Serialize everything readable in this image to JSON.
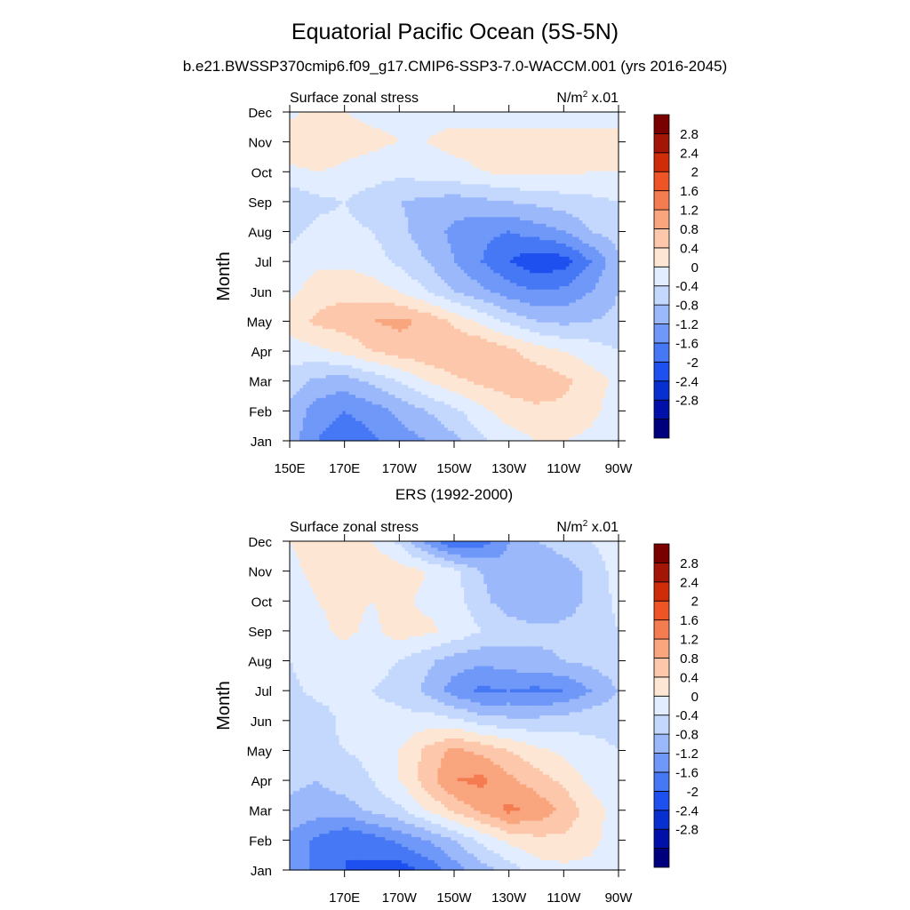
{
  "title": "Equatorial Pacific Ocean (5S-5N)",
  "subtitle": "b.e21.BWSSP370cmip6.f09_g17.CMIP6-SSP3-7.0-WACCM.001 (yrs 2016-2045)",
  "colors": {
    "levels": [
      "#00007f",
      "#0010a8",
      "#0830d0",
      "#1e50f0",
      "#4678f5",
      "#6f98f8",
      "#9bb8fb",
      "#c4d7fd",
      "#e2eeff",
      "#fde7d4",
      "#fcc7aa",
      "#f9a57e",
      "#f57b51",
      "#ee5426",
      "#cf2c0a",
      "#a31507",
      "#7a0000"
    ]
  },
  "chart_data": [
    {
      "type": "heatmap",
      "title": "",
      "left_label": "Surface zonal stress",
      "right_label": "N/m",
      "right_label_sup": "2",
      "right_label_tail": " x.01",
      "ylabel": "Month",
      "months": [
        "Jan",
        "Feb",
        "Mar",
        "Apr",
        "May",
        "Jun",
        "Jul",
        "Aug",
        "Sep",
        "Oct",
        "Nov",
        "Dec"
      ],
      "xlim": [
        150,
        270
      ],
      "x_ticks": [
        "150E",
        "170E",
        "170W",
        "150W",
        "130W",
        "110W",
        "90W"
      ],
      "x_tick_values": [
        150,
        170,
        190,
        210,
        230,
        250,
        270
      ],
      "colorbar_labels": [
        "2.8",
        "2.4",
        "2",
        "1.6",
        "1.2",
        "0.8",
        "0.4",
        "0",
        "-0.4",
        "-0.8",
        "-1.2",
        "-1.6",
        "-2",
        "-2.4",
        "-2.8"
      ],
      "longitudes": [
        150,
        160,
        170,
        180,
        190,
        200,
        210,
        220,
        230,
        240,
        250,
        260,
        270
      ],
      "values": [
        [
          -0.6,
          -1.2,
          -1.5,
          -1.3,
          -1.0,
          -0.8,
          -0.5,
          -0.1,
          0.2,
          0.4,
          0.4,
          0.3,
          0.1
        ],
        [
          -0.5,
          -1.0,
          -1.2,
          -1.0,
          -0.7,
          -0.4,
          -0.1,
          0.3,
          0.6,
          0.7,
          0.7,
          0.5,
          0.2
        ],
        [
          -0.2,
          -0.5,
          -0.6,
          -0.3,
          0.0,
          0.4,
          0.7,
          0.9,
          1.0,
          1.1,
          0.9,
          0.6,
          0.3
        ],
        [
          0.2,
          0.3,
          0.5,
          0.8,
          1.0,
          1.1,
          1.2,
          1.2,
          0.9,
          0.6,
          0.4,
          0.2,
          0.0
        ],
        [
          0.6,
          0.9,
          1.0,
          1.2,
          1.3,
          1.1,
          0.7,
          0.3,
          -0.1,
          -0.4,
          -0.5,
          -0.4,
          -0.3
        ],
        [
          0.3,
          0.6,
          0.7,
          0.6,
          0.4,
          0.0,
          -0.4,
          -0.7,
          -1.0,
          -1.2,
          -1.1,
          -0.8,
          -0.4
        ],
        [
          0.1,
          0.3,
          0.3,
          0.2,
          -0.1,
          -0.4,
          -0.8,
          -1.2,
          -1.6,
          -1.9,
          -1.8,
          -1.2,
          -0.5
        ],
        [
          -0.1,
          0.1,
          0.1,
          0.0,
          -0.3,
          -0.6,
          -0.9,
          -1.1,
          -1.2,
          -1.0,
          -0.8,
          -0.4,
          -0.2
        ],
        [
          -0.3,
          -0.1,
          0.0,
          -0.2,
          -0.4,
          -0.5,
          -0.6,
          -0.5,
          -0.4,
          -0.3,
          -0.2,
          -0.1,
          0.0
        ],
        [
          0.3,
          0.4,
          0.3,
          0.2,
          0.1,
          0.2,
          0.3,
          0.4,
          0.5,
          0.5,
          0.5,
          0.4,
          0.4
        ],
        [
          0.7,
          0.8,
          0.6,
          0.5,
          0.4,
          0.4,
          0.5,
          0.5,
          0.5,
          0.5,
          0.5,
          0.5,
          0.5
        ],
        [
          0.3,
          0.5,
          0.4,
          0.3,
          0.3,
          0.3,
          0.3,
          0.3,
          0.3,
          0.3,
          0.3,
          0.3,
          0.3
        ]
      ]
    },
    {
      "type": "heatmap",
      "title": "ERS (1992-2000)",
      "left_label": "Surface zonal stress",
      "right_label": "N/m",
      "right_label_sup": "2",
      "right_label_tail": " x.01",
      "ylabel": "Month",
      "months": [
        "Jan",
        "Feb",
        "Mar",
        "Apr",
        "May",
        "Jun",
        "Jul",
        "Aug",
        "Sep",
        "Oct",
        "Nov",
        "Dec"
      ],
      "xlim": [
        150,
        270
      ],
      "x_ticks": [
        "170E",
        "170W",
        "150W",
        "130W",
        "110W",
        "90W"
      ],
      "x_tick_values": [
        170,
        190,
        210,
        230,
        250,
        270
      ],
      "colorbar_labels": [
        "2.8",
        "2.4",
        "2",
        "1.6",
        "1.2",
        "0.8",
        "0.4",
        "0",
        "-0.4",
        "-0.8",
        "-1.2",
        "-1.6",
        "-2",
        "-2.4",
        "-2.8"
      ],
      "longitudes": [
        150,
        160,
        170,
        180,
        190,
        200,
        210,
        220,
        230,
        240,
        250,
        260,
        270
      ],
      "values": [
        [
          -0.8,
          -1.4,
          -1.6,
          -1.7,
          -1.8,
          -1.5,
          -1.0,
          -0.6,
          -0.2,
          0.2,
          0.3,
          0.3,
          0.2
        ],
        [
          -0.9,
          -1.3,
          -1.6,
          -1.4,
          -1.1,
          -0.8,
          -0.4,
          0.1,
          0.5,
          0.7,
          0.7,
          0.5,
          0.2
        ],
        [
          -0.5,
          -0.6,
          -0.6,
          -0.3,
          -0.1,
          0.4,
          0.9,
          1.3,
          1.7,
          1.5,
          1.1,
          0.6,
          0.2
        ],
        [
          -0.3,
          -0.4,
          -0.2,
          0.0,
          0.4,
          1.0,
          1.6,
          1.7,
          1.3,
          1.0,
          0.7,
          0.3,
          0.1
        ],
        [
          -0.2,
          -0.1,
          0.0,
          0.1,
          0.4,
          0.9,
          1.3,
          1.1,
          0.8,
          0.5,
          0.3,
          0.1,
          0.0
        ],
        [
          -0.3,
          -0.2,
          0.1,
          0.1,
          0.1,
          0.2,
          0.1,
          -0.2,
          -0.3,
          -0.3,
          -0.2,
          -0.1,
          -0.1
        ],
        [
          -0.1,
          0.1,
          0.1,
          0.0,
          -0.1,
          -0.5,
          -1.0,
          -1.3,
          -1.2,
          -1.3,
          -1.2,
          -0.8,
          -0.4
        ],
        [
          0.0,
          0.2,
          0.2,
          0.1,
          0.0,
          -0.3,
          -0.6,
          -0.7,
          -0.6,
          -0.5,
          -0.4,
          -0.3,
          -0.1
        ],
        [
          0.1,
          0.3,
          0.5,
          0.3,
          0.6,
          0.5,
          0.3,
          0.0,
          -0.2,
          -0.3,
          -0.3,
          -0.2,
          0.0
        ],
        [
          0.2,
          0.4,
          0.5,
          0.4,
          0.5,
          0.3,
          0.2,
          -0.3,
          -0.6,
          -0.8,
          -0.6,
          -0.3,
          0.1
        ],
        [
          0.3,
          0.5,
          0.6,
          0.8,
          0.6,
          0.4,
          0.1,
          -0.4,
          -0.7,
          -0.8,
          -0.6,
          -0.3,
          0.2
        ],
        [
          0.4,
          0.6,
          0.5,
          0.4,
          -0.1,
          -0.9,
          -1.6,
          -1.4,
          -0.8,
          -0.4,
          -0.2,
          0.0,
          0.3
        ]
      ]
    }
  ]
}
